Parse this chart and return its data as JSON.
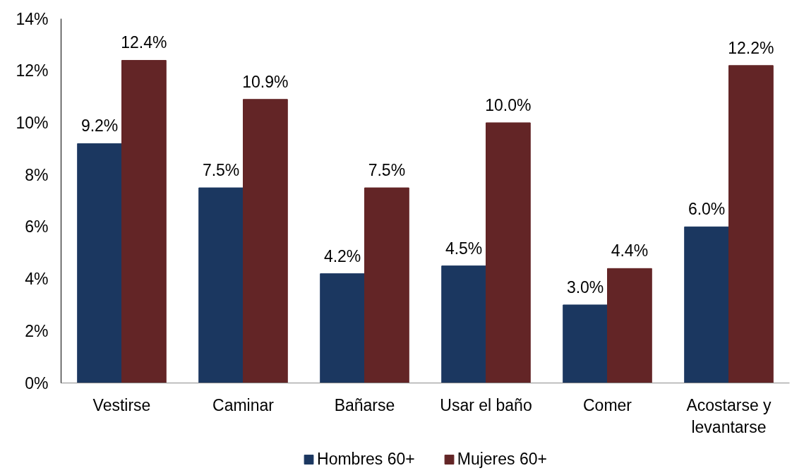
{
  "chart_data": {
    "type": "bar",
    "categories": [
      "Vestirse",
      "Caminar",
      "Bañarse",
      "Usar el baño",
      "Comer",
      "Acostarse y levantarse"
    ],
    "series": [
      {
        "name": "Hombres 60+",
        "color": "#1b3760",
        "values": [
          9.2,
          7.5,
          4.2,
          4.5,
          3.0,
          6.0
        ],
        "value_labels": [
          "9.2%",
          "7.5%",
          "4.2%",
          "4.5%",
          "3.0%",
          "6.0%"
        ]
      },
      {
        "name": "Mujeres 60+",
        "color": "#632526",
        "values": [
          12.4,
          10.9,
          7.5,
          10.0,
          4.4,
          12.2
        ],
        "value_labels": [
          "12.4%",
          "10.9%",
          "7.5%",
          "10.0%",
          "4.4%",
          "12.2%"
        ]
      }
    ],
    "ylim": [
      0,
      14
    ],
    "yticks": [
      {
        "value": 0,
        "label": "0%"
      },
      {
        "value": 2,
        "label": "2%"
      },
      {
        "value": 4,
        "label": "4%"
      },
      {
        "value": 6,
        "label": "6%"
      },
      {
        "value": 8,
        "label": "8%"
      },
      {
        "value": 10,
        "label": "10%"
      },
      {
        "value": 12,
        "label": "12%"
      },
      {
        "value": 14,
        "label": "14%"
      }
    ],
    "grid": false,
    "legend": "bottom"
  }
}
